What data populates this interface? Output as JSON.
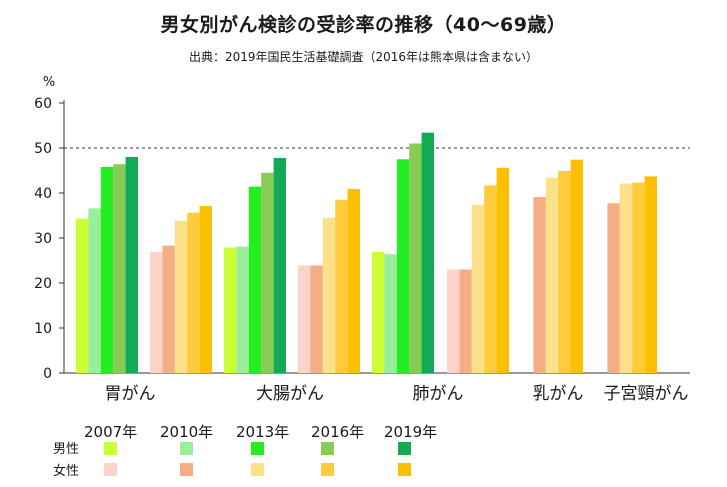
{
  "title": "男女別がん検診の受診率の推移（40～69歳）",
  "subtitle": "出典：2019年国民生活基礎調査（2016年は熊本県は含まない）",
  "y_unit_label": "%",
  "legend": {
    "years": [
      "2007年",
      "2010年",
      "2013年",
      "2016年",
      "2019年"
    ],
    "male_label": "男性",
    "female_label": "女性"
  },
  "colors": {
    "male": [
      "#ccff33",
      "#99ee99",
      "#22ee22",
      "#88cc55",
      "#11aa55"
    ],
    "female": [
      "#fbd3c8",
      "#f4ad85",
      "#fde08a",
      "#fecb3c",
      "#fbc100"
    ],
    "reference_line": "#333333",
    "axis": "#333333"
  },
  "chart_data": {
    "type": "bar",
    "categories": [
      "胃がん",
      "大腸がん",
      "肺がん",
      "乳がん",
      "子宮頸がん"
    ],
    "years": [
      "2007年",
      "2010年",
      "2013年",
      "2016年",
      "2019年"
    ],
    "ylim": [
      0,
      60
    ],
    "yticks": [
      0,
      10,
      20,
      30,
      40,
      50,
      60
    ],
    "reference_line_y": 50,
    "grid": false,
    "legend_position": "bottom-left",
    "groups": [
      {
        "category": "胃がん",
        "male": [
          34.3,
          36.6,
          45.8,
          46.4,
          48.0
        ],
        "female": [
          26.9,
          28.3,
          33.8,
          35.6,
          37.1
        ]
      },
      {
        "category": "大腸がん",
        "male": [
          27.9,
          28.1,
          41.4,
          44.5,
          47.8
        ],
        "female": [
          23.9,
          23.9,
          34.5,
          38.5,
          40.9
        ]
      },
      {
        "category": "肺がん",
        "male": [
          26.9,
          26.4,
          47.5,
          51.0,
          53.4
        ],
        "female": [
          23.0,
          23.0,
          37.4,
          41.7,
          45.6
        ]
      },
      {
        "category": "乳がん",
        "male": null,
        "female": [
          null,
          39.1,
          43.4,
          44.9,
          47.4
        ]
      },
      {
        "category": "子宮頸がん",
        "male": null,
        "female": [
          null,
          37.7,
          42.1,
          42.3,
          43.7
        ]
      }
    ]
  }
}
